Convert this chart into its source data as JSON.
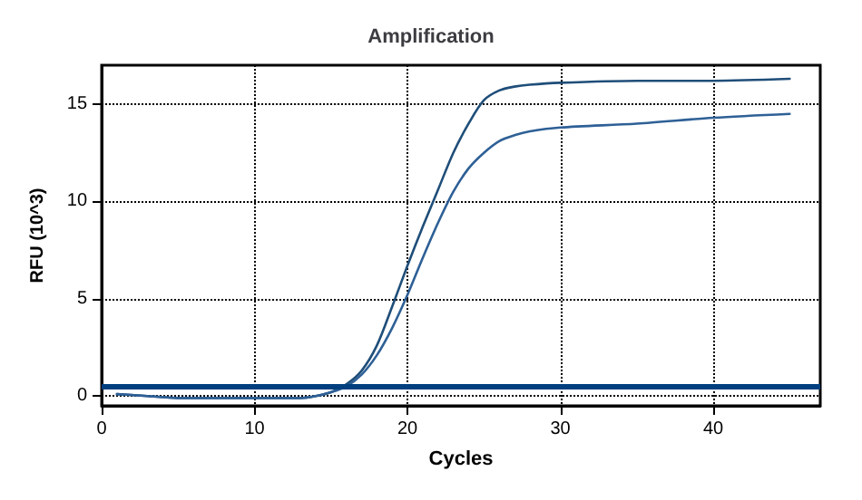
{
  "chart_data": {
    "type": "line",
    "title": "Amplification",
    "xlabel": "Cycles",
    "ylabel": "RFU (10^3)",
    "xlim": [
      0,
      47
    ],
    "xticks": [
      0,
      10,
      20,
      30,
      40
    ],
    "ylim": [
      -0.5,
      17
    ],
    "yticks": [
      0,
      5,
      10,
      15
    ],
    "grid": true,
    "marker": "none",
    "line_style": "solid",
    "series": [
      {
        "color": "#1f4e79",
        "x": [
          1,
          3,
          5,
          8,
          10,
          12,
          13,
          14,
          15,
          16,
          17,
          18,
          19,
          20,
          21,
          22,
          23,
          24,
          25,
          26,
          27,
          28,
          30,
          35,
          40,
          45
        ],
        "values": [
          0.1,
          0.0,
          -0.1,
          -0.1,
          -0.1,
          -0.1,
          -0.1,
          0.0,
          0.2,
          0.6,
          1.3,
          2.6,
          4.6,
          6.7,
          8.7,
          10.6,
          12.5,
          14.0,
          15.2,
          15.7,
          15.9,
          16.0,
          16.1,
          16.2,
          16.2,
          16.3
        ]
      },
      {
        "color": "#2e6096",
        "x": [
          1,
          3,
          5,
          8,
          10,
          12,
          13,
          14,
          15,
          16,
          17,
          18,
          19,
          20,
          21,
          22,
          23,
          24,
          25,
          26,
          27,
          28,
          30,
          35,
          40,
          45
        ],
        "values": [
          0.1,
          0.0,
          -0.1,
          -0.1,
          -0.1,
          -0.1,
          -0.1,
          0.0,
          0.2,
          0.5,
          1.1,
          2.1,
          3.5,
          5.2,
          7.1,
          8.9,
          10.5,
          11.7,
          12.5,
          13.1,
          13.4,
          13.6,
          13.8,
          14.0,
          14.3,
          14.5
        ]
      }
    ],
    "ref_lines": [
      {
        "axis": "y",
        "value": 0.5,
        "color": "#003f7f"
      }
    ]
  }
}
